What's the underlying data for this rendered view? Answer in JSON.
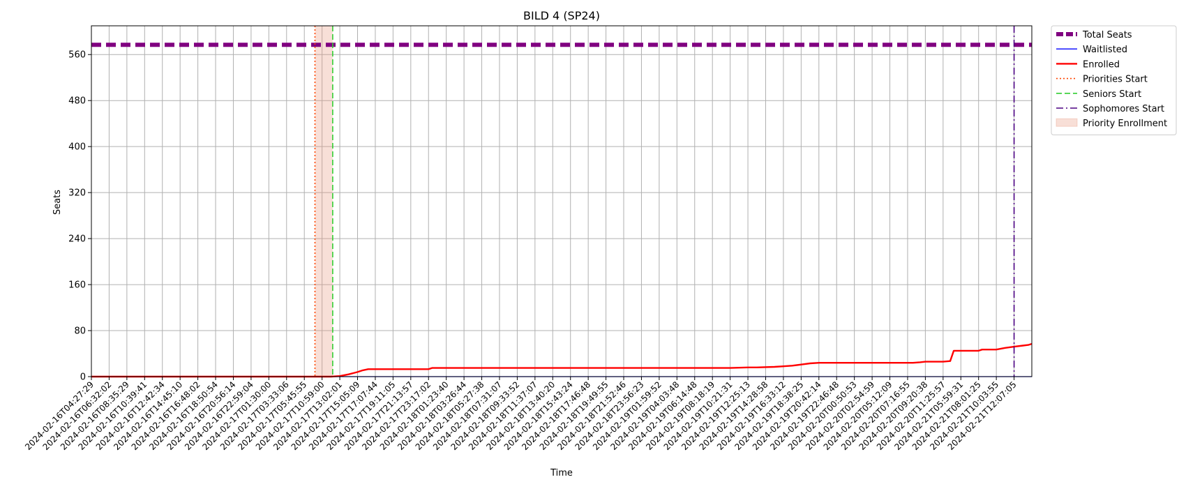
{
  "chart_data": {
    "type": "line",
    "title": "BILD 4 (SP24)",
    "xlabel": "Time",
    "ylabel": "Seats",
    "ylim": [
      0,
      610
    ],
    "yticks": [
      0,
      80,
      160,
      240,
      320,
      400,
      480,
      560
    ],
    "grid": true,
    "legend_position": "outside-top-right",
    "x_ticks": [
      "2024-02-16T04:27:29",
      "2024-02-16T06:32:02",
      "2024-02-16T08:35:29",
      "2024-02-16T10:39:41",
      "2024-02-16T12:42:34",
      "2024-02-16T14:45:10",
      "2024-02-16T16:48:02",
      "2024-02-16T18:50:54",
      "2024-02-16T20:56:14",
      "2024-02-16T22:59:04",
      "2024-02-17T01:30:00",
      "2024-02-17T03:33:06",
      "2024-02-17T05:45:55",
      "2024-02-17T10:59:00",
      "2024-02-17T13:02:01",
      "2024-02-17T15:05:09",
      "2024-02-17T17:07:44",
      "2024-02-17T19:11:05",
      "2024-02-17T21:13:57",
      "2024-02-17T23:17:02",
      "2024-02-18T01:23:40",
      "2024-02-18T03:26:44",
      "2024-02-18T05:27:38",
      "2024-02-18T07:31:07",
      "2024-02-18T09:33:52",
      "2024-02-18T11:37:07",
      "2024-02-18T13:40:20",
      "2024-02-18T15:43:24",
      "2024-02-18T17:46:48",
      "2024-02-18T19:49:55",
      "2024-02-18T21:52:46",
      "2024-02-18T23:56:23",
      "2024-02-19T01:59:52",
      "2024-02-19T04:03:48",
      "2024-02-19T06:14:48",
      "2024-02-19T08:18:19",
      "2024-02-19T10:21:31",
      "2024-02-19T12:25:13",
      "2024-02-19T14:28:58",
      "2024-02-19T16:33:12",
      "2024-02-19T18:38:25",
      "2024-02-19T20:42:14",
      "2024-02-19T22:46:48",
      "2024-02-20T00:50:53",
      "2024-02-20T02:54:59",
      "2024-02-20T05:12:09",
      "2024-02-20T07:16:55",
      "2024-02-20T09:20:38",
      "2024-02-20T11:25:57",
      "2024-02-21T05:59:31",
      "2024-02-21T08:01:25",
      "2024-02-21T10:03:55",
      "2024-02-21T12:07:05"
    ],
    "x_max_index": 53,
    "series": [
      {
        "name": "Total Seats",
        "style": "dashed-thick",
        "color": "#800080",
        "x": [
          0,
          53
        ],
        "y": [
          577,
          577
        ]
      },
      {
        "name": "Waitlisted",
        "style": "solid-thin",
        "color": "#0000ff",
        "x": [
          0,
          53
        ],
        "y": [
          0,
          0
        ]
      },
      {
        "name": "Enrolled",
        "style": "solid",
        "color": "#ff0000",
        "x": [
          0,
          13.5,
          14.0,
          14.5,
          15.0,
          15.3,
          15.6,
          16,
          17,
          18,
          19,
          19.2,
          20,
          25,
          30,
          36,
          37,
          37.5,
          38.5,
          39,
          39.5,
          40,
          40.5,
          41,
          42,
          46,
          46.3,
          46.7,
          47,
          48,
          48.4,
          48.6,
          49,
          50,
          50.2,
          51,
          51.5,
          52,
          52.5,
          52.8,
          53
        ],
        "y": [
          0,
          0,
          1,
          4,
          8,
          11,
          13,
          13,
          13,
          13,
          13,
          15,
          15,
          15,
          15,
          15,
          16,
          16,
          17,
          18,
          19,
          21,
          23,
          24,
          24,
          24,
          24,
          25,
          26,
          26,
          27,
          45,
          45,
          45,
          47,
          47,
          50,
          52,
          54,
          55,
          57
        ]
      }
    ],
    "vlines": [
      {
        "name": "Priorities Start",
        "x": 12.6,
        "color": "#ff4500",
        "style": "dotted"
      },
      {
        "name": "Seniors Start",
        "x": 13.6,
        "color": "#32cd32",
        "style": "dashed"
      },
      {
        "name": "Sophomores Start",
        "x": 52.0,
        "color": "#4b0082",
        "style": "dashdot"
      }
    ],
    "spans": [
      {
        "name": "Priority Enrollment",
        "x0": 12.6,
        "x1": 13.6,
        "color": "#e9967a",
        "opacity": 0.3
      }
    ],
    "legend": [
      {
        "label": "Total Seats",
        "kind": "line",
        "color": "#800080",
        "style": "dashed-thick"
      },
      {
        "label": "Waitlisted",
        "kind": "line",
        "color": "#0000ff",
        "style": "solid-thin"
      },
      {
        "label": "Enrolled",
        "kind": "line",
        "color": "#ff0000",
        "style": "solid"
      },
      {
        "label": "Priorities Start",
        "kind": "line",
        "color": "#ff4500",
        "style": "dotted"
      },
      {
        "label": "Seniors Start",
        "kind": "line",
        "color": "#32cd32",
        "style": "dashed"
      },
      {
        "label": "Sophomores Start",
        "kind": "line",
        "color": "#4b0082",
        "style": "dashdot"
      },
      {
        "label": "Priority Enrollment",
        "kind": "patch",
        "color": "#e9967a",
        "style": "fill"
      }
    ]
  }
}
